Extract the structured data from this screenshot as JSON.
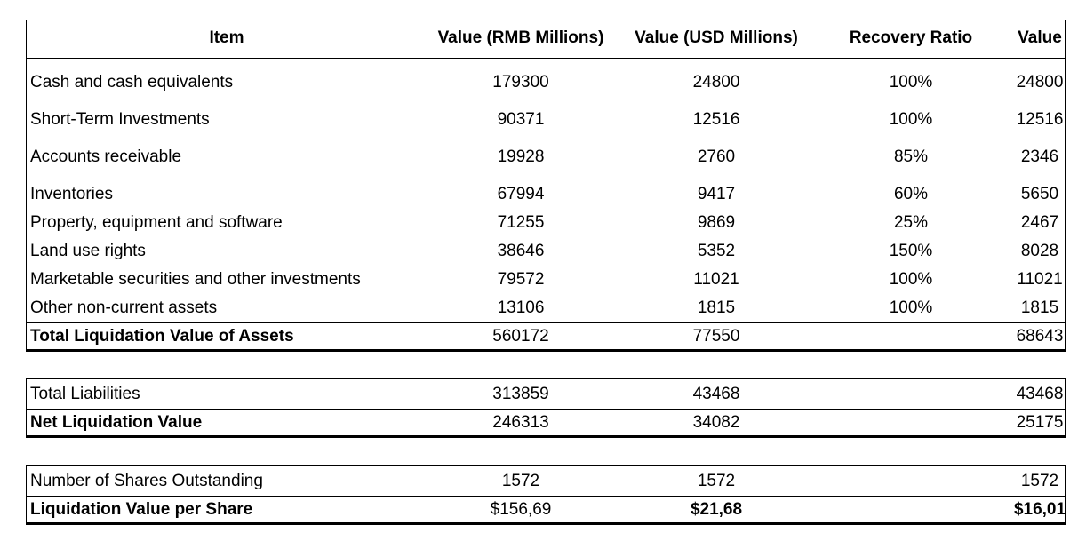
{
  "header": {
    "item": "Item",
    "rmb": "Value (RMB Millions)",
    "usd": "Value (USD Millions)",
    "ratio": "Recovery Ratio",
    "value": "Value"
  },
  "assets": [
    {
      "item": "Cash and cash equivalents",
      "rmb": "179300",
      "usd": "24800",
      "ratio": "100%",
      "value": "24800"
    },
    {
      "item": "Short-Term Investments",
      "rmb": "90371",
      "usd": "12516",
      "ratio": "100%",
      "value": "12516"
    },
    {
      "item": "Accounts receivable",
      "rmb": "19928",
      "usd": "2760",
      "ratio": "85%",
      "value": "2346"
    },
    {
      "item": "Inventories",
      "rmb": "67994",
      "usd": "9417",
      "ratio": "60%",
      "value": "5650"
    },
    {
      "item": "Property, equipment and software",
      "rmb": "71255",
      "usd": "9869",
      "ratio": "25%",
      "value": "2467"
    },
    {
      "item": "Land use rights",
      "rmb": "38646",
      "usd": "5352",
      "ratio": "150%",
      "value": "8028"
    },
    {
      "item": "Marketable securities and other investments",
      "rmb": "79572",
      "usd": "11021",
      "ratio": "100%",
      "value": "11021"
    },
    {
      "item": "Other non-current assets",
      "rmb": "13106",
      "usd": "1815",
      "ratio": "100%",
      "value": "1815"
    }
  ],
  "total_assets": {
    "item": "Total Liquidation Value of Assets",
    "rmb": "560172",
    "usd": "77550",
    "ratio": "",
    "value": "68643"
  },
  "liabilities": {
    "item": "Total Liabilities",
    "rmb": "313859",
    "usd": "43468",
    "ratio": "",
    "value": "43468"
  },
  "net_value": {
    "item": "Net Liquidation Value",
    "rmb": "246313",
    "usd": "34082",
    "ratio": "",
    "value": "25175"
  },
  "shares": {
    "item": "Number of Shares Outstanding",
    "rmb": "1572",
    "usd": "1572",
    "ratio": "",
    "value": "1572"
  },
  "per_share": {
    "item": "Liquidation Value per Share",
    "rmb": "$156,69",
    "usd": "$21,68",
    "ratio": "",
    "value": "$16,01"
  }
}
